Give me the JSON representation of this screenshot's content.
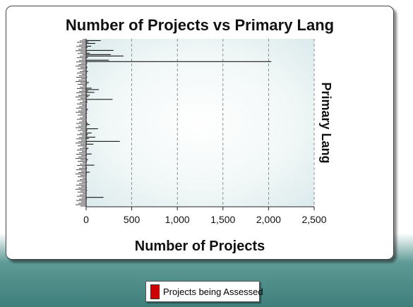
{
  "chart_data": {
    "type": "bar",
    "orientation": "horizontal",
    "title": "Number of Projects vs Primary Lang",
    "xlabel": "Number of Projects",
    "ylabel": "Primary Lang",
    "xlim": [
      0,
      2500
    ],
    "x_ticks": [
      "0",
      "500",
      "1,000",
      "1,500",
      "2,000",
      "2,500"
    ],
    "x_tick_values": [
      0,
      500,
      1000,
      1500,
      2000,
      2500
    ],
    "grid": "vertical-dashed",
    "legend_position": "bottom",
    "category_count": 120,
    "series": [
      {
        "name": "Projects being Assessed",
        "color": "#cc0000",
        "values": [
          4,
          160,
          25,
          100,
          8,
          55,
          15,
          3,
          300,
          10,
          40,
          270,
          410,
          20,
          5,
          250,
          2030,
          12,
          6,
          3,
          15,
          8,
          4,
          20,
          9,
          5,
          3,
          12,
          6,
          4,
          8,
          30,
          10,
          5,
          3,
          60,
          140,
          20,
          90,
          8,
          40,
          25,
          6,
          290,
          10,
          15,
          4,
          8,
          6,
          3,
          20,
          12,
          5,
          10,
          4,
          6,
          8,
          3,
          5,
          7,
          20,
          40,
          10,
          5,
          130,
          15,
          8,
          60,
          20,
          12,
          100,
          30,
          5,
          370,
          10,
          80,
          6,
          4,
          25,
          10,
          5,
          3,
          60,
          8,
          4,
          6,
          20,
          10,
          3,
          5,
          90,
          4,
          10,
          6,
          3,
          40,
          8,
          5,
          4,
          3,
          6,
          3,
          10,
          4,
          5,
          3,
          8,
          4,
          10,
          3,
          5,
          3,
          4,
          190,
          8,
          3,
          5,
          4,
          3,
          6
        ]
      }
    ]
  }
}
